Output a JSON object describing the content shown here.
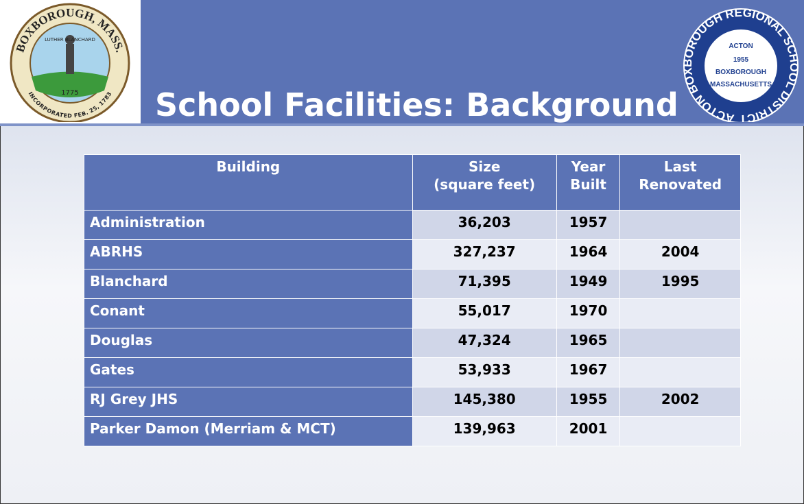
{
  "header": {
    "title": "School Facilities: Background",
    "left_logo": {
      "ring": "BOXBOROUGH, MASS.",
      "banner": "LUTHER BLANCHARD",
      "year": "1775",
      "bottom": "INCORPORATED FEB. 25, 1783"
    },
    "right_logo": {
      "ring": "ACTON BOXBOROUGH REGIONAL SCHOOL DISTRICT",
      "lines": [
        "ACTON",
        "1955",
        "BOXBOROUGH",
        "MASSACHUSETTS"
      ]
    }
  },
  "table": {
    "columns": [
      [
        "Building"
      ],
      [
        "Size",
        "(square feet)"
      ],
      [
        "Year",
        "Built"
      ],
      [
        "Last",
        "Renovated"
      ]
    ],
    "rows": [
      [
        "Administration",
        "36,203",
        "1957",
        null
      ],
      [
        "ABRHS",
        "327,237",
        "1964",
        "2004"
      ],
      [
        "Blanchard",
        "71,395",
        "1949",
        "1995"
      ],
      [
        "Conant",
        "55,017",
        "1970",
        null
      ],
      [
        "Douglas",
        "47,324",
        "1965",
        null
      ],
      [
        "Gates",
        "53,933",
        "1967",
        null
      ],
      [
        "RJ Grey JHS",
        "145,380",
        "1955",
        "2002"
      ],
      [
        "Parker Damon (Merriam & MCT)",
        "139,963",
        "2001",
        null
      ]
    ]
  }
}
